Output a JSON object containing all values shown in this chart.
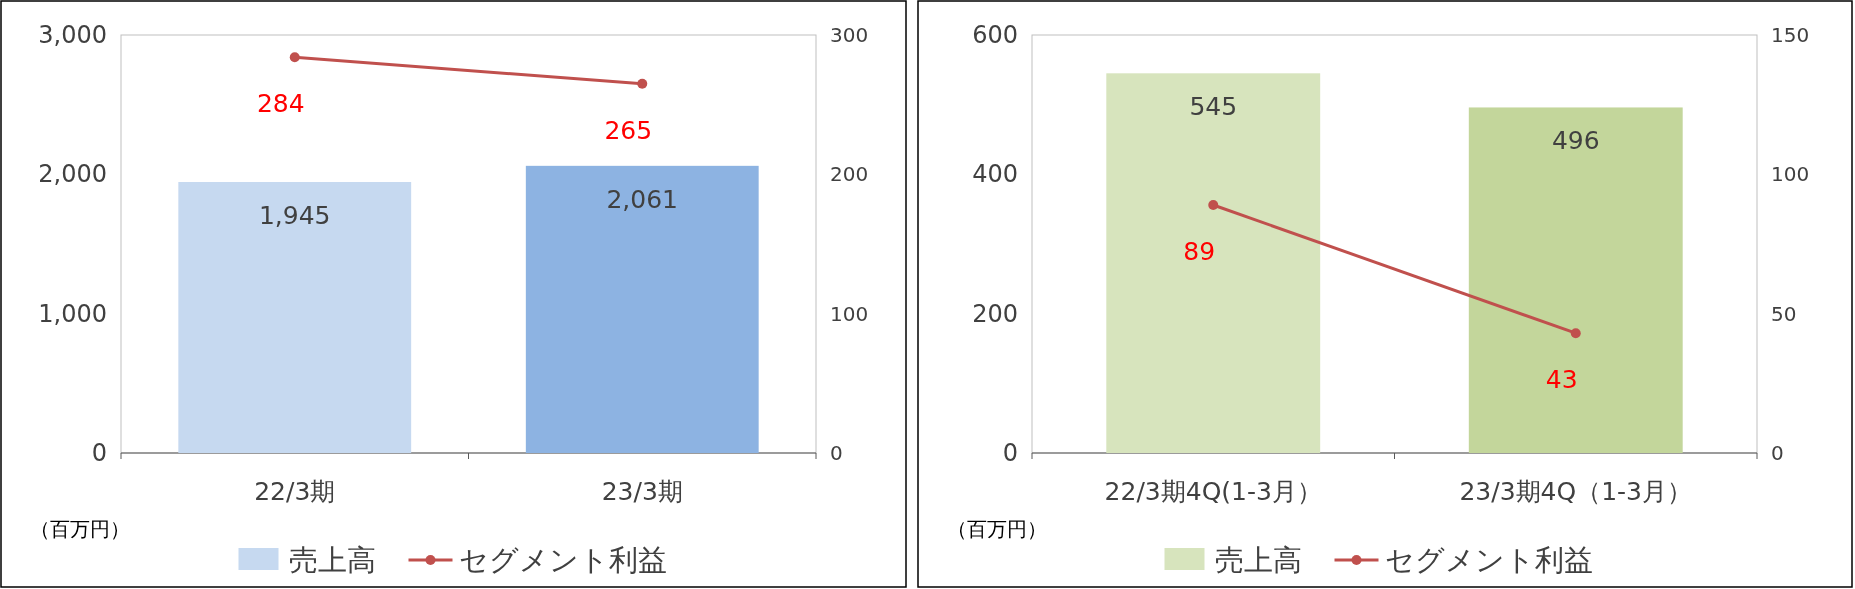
{
  "chart_data": [
    {
      "type": "bar",
      "categories": [
        "22/3期",
        "23/3期"
      ],
      "series": [
        {
          "name": "売上高",
          "colors": [
            "#c6d9f0",
            "#8db3e2"
          ],
          "values": [
            1945,
            2061
          ],
          "value_labels": [
            "1,945",
            "2,061"
          ]
        },
        {
          "name": "セグメント利益",
          "type": "line",
          "axis": "y2",
          "color": "#c0504d",
          "values": [
            284,
            265
          ]
        }
      ],
      "ylim": [
        0,
        3000
      ],
      "yticks": [
        0,
        {
          "value": 1000,
          "label": "1,000"
        },
        {
          "value": 2000,
          "label": "2,000"
        },
        {
          "value": 3000,
          "label": "3,000"
        }
      ],
      "y2lim": [
        0,
        300
      ],
      "y2ticks": [
        0,
        100,
        200,
        300
      ],
      "data_labels": true,
      "marker": "circle",
      "legend": "bottom",
      "annotations": [
        "（百万円）"
      ]
    },
    {
      "type": "bar",
      "categories": [
        "22/3期4Q(1-3月）",
        "23/3期4Q（1-3月）"
      ],
      "series": [
        {
          "name": "売上高",
          "colors": [
            "#d7e4bd",
            "#c3d69b"
          ],
          "values": [
            545,
            496
          ]
        },
        {
          "name": "セグメント利益",
          "type": "line",
          "axis": "y2",
          "color": "#c0504d",
          "values": [
            89,
            43
          ]
        }
      ],
      "ylim": [
        0,
        600
      ],
      "yticks": [
        0,
        200,
        400,
        600
      ],
      "y2lim": [
        0,
        150
      ],
      "y2ticks": [
        0,
        50,
        100,
        150
      ],
      "data_labels": true,
      "marker": "circle",
      "legend": "bottom",
      "annotations": [
        "（百万円）"
      ]
    }
  ]
}
